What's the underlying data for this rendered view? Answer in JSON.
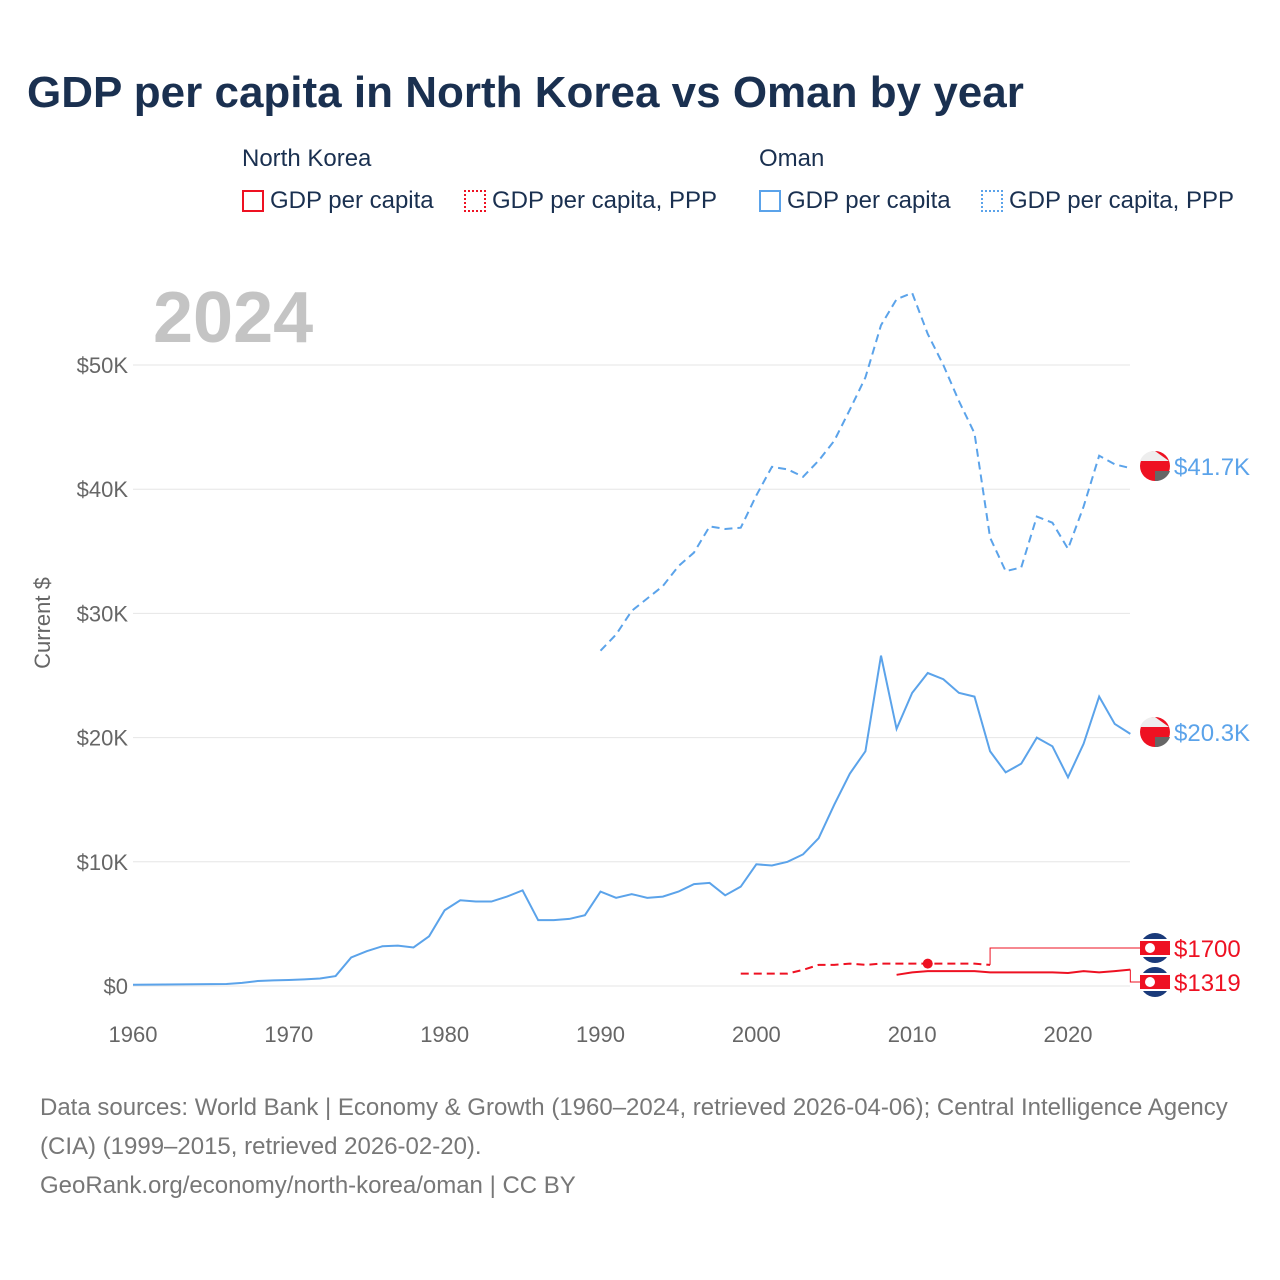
{
  "chart_data": {
    "type": "line",
    "title": "GDP per capita in North Korea vs Oman by year",
    "ylabel": "Current $",
    "xlim": [
      1960,
      2024
    ],
    "ylim": [
      0,
      55000
    ],
    "xticks": [
      "1960",
      "1970",
      "1980",
      "1990",
      "2000",
      "2010",
      "2020"
    ],
    "yticks": [
      {
        "v": 0,
        "l": "$0"
      },
      {
        "v": 10000,
        "l": "$10K"
      },
      {
        "v": 20000,
        "l": "$20K"
      },
      {
        "v": 30000,
        "l": "$30K"
      },
      {
        "v": 40000,
        "l": "$40K"
      },
      {
        "v": 50000,
        "l": "$50K"
      }
    ],
    "year_label": "2024",
    "legend": {
      "groups": [
        {
          "title": "North Korea",
          "items": [
            "GDP per capita",
            "GDP per capita, PPP"
          ]
        },
        {
          "title": "Oman",
          "items": [
            "GDP per capita",
            "GDP per capita, PPP"
          ]
        }
      ]
    },
    "colors": {
      "north_korea": "#ee1122",
      "oman": "#5ba3ea"
    },
    "series": [
      {
        "name": "Oman GDP per capita",
        "country": "oman",
        "dashed": false,
        "end_label": "$20.3K",
        "start": 1960,
        "values": [
          100,
          110,
          120,
          130,
          140,
          150,
          160,
          250,
          400,
          450,
          480,
          530,
          600,
          800,
          2300,
          2800,
          3200,
          3250,
          3100,
          4000,
          6100,
          6900,
          6800,
          6800,
          7200,
          7700,
          5300,
          5300,
          5400,
          5700,
          7600,
          7100,
          7400,
          7100,
          7200,
          7600,
          8200,
          8300,
          7300,
          8000,
          9800,
          9700,
          10000,
          10600,
          11900,
          14600,
          17100,
          18900,
          26600,
          20700,
          23600,
          25200,
          24700,
          23600,
          23300,
          18900,
          17200,
          17900,
          20000,
          19300,
          16800,
          19500,
          23300,
          21100,
          20300
        ]
      },
      {
        "name": "Oman GDP per capita, PPP",
        "country": "oman",
        "dashed": true,
        "end_label": "$41.7K",
        "start": 1990,
        "values": [
          27000,
          28300,
          30200,
          31200,
          32200,
          33800,
          34900,
          37000,
          36800,
          36900,
          39500,
          41800,
          41600,
          41000,
          42300,
          43900,
          46400,
          49000,
          53200,
          55300,
          55800,
          52500,
          50000,
          47100,
          44500,
          36100,
          33400,
          33700,
          37800,
          37300,
          35200,
          38600,
          42700,
          42000,
          41700
        ]
      },
      {
        "name": "North Korea GDP per capita, PPP",
        "country": "north_korea",
        "dashed": true,
        "end_label": "$1700",
        "start": 1999,
        "marker_year": 2011,
        "values": [
          1000,
          1000,
          1000,
          1000,
          1300,
          1700,
          1700,
          1800,
          1700,
          1800,
          1800,
          1800,
          1800,
          1800,
          1800,
          1800,
          1700
        ]
      },
      {
        "name": "North Korea GDP per capita",
        "country": "north_korea",
        "dashed": false,
        "end_label": "$1319",
        "start": 2009,
        "values": [
          900,
          1100,
          1200,
          1200,
          1200,
          1200,
          1100,
          1100,
          1100,
          1100,
          1100,
          1050,
          1200,
          1100,
          1200,
          1319
        ]
      }
    ]
  },
  "footer": {
    "sources": "Data sources: World Bank | Economy & Growth (1960–2024, retrieved 2026-04-06); Central Intelligence Agency (CIA) (1999–2015, retrieved 2026-02-20).",
    "credit": "GeoRank.org/economy/north-korea/oman | CC BY"
  }
}
